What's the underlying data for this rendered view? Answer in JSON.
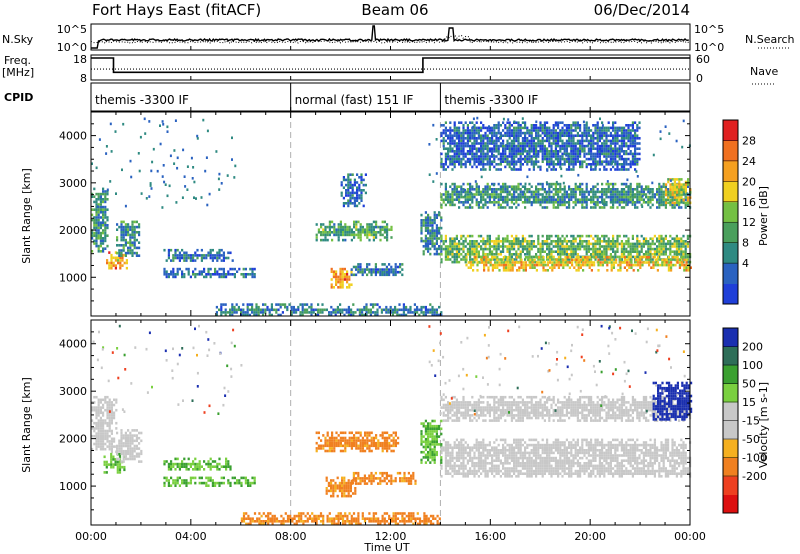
{
  "header": {
    "radar": "Fort Hays East (fitACF)",
    "beam": "Beam 06",
    "date": "06/Dec/2014"
  },
  "left_labels": {
    "nsky": "N.Sky",
    "freq_line1": "Freq.",
    "freq_line2": "[MHz]",
    "cpid": "CPID"
  },
  "right_labels": {
    "nsearch": "N.Search",
    "nave": "Nave"
  },
  "xaxis": {
    "title": "Time UT",
    "ticks": [
      "00:00",
      "04:00",
      "08:00",
      "12:00",
      "16:00",
      "20:00",
      "00:00"
    ],
    "range_hours": [
      0,
      24
    ]
  },
  "colors": {
    "power": [
      "#1f3fd8",
      "#2a62c0",
      "#2f8a82",
      "#4a9f5c",
      "#74c043",
      "#f0d020",
      "#f5a020",
      "#f07020",
      "#e02020"
    ],
    "velocity": [
      "#1a2fb0",
      "#2e6e58",
      "#3aa030",
      "#7ad040",
      "#c8c8c8",
      "#c8c8c8",
      "#f5b020",
      "#f08020",
      "#ee4020",
      "#dd1010"
    ],
    "grey": "#c8c8c8"
  },
  "chart_data": [
    {
      "id": "noise",
      "type": "line",
      "ylabel_left": "N.Sky",
      "ylabel_right": "N.Search",
      "left_ticks": [
        "10^5",
        "10^0"
      ],
      "right_ticks": [
        "10^5",
        "10^0"
      ],
      "note": "Noise level; flat near 10^0 with spikes near 11:20 and 14:30 UT"
    },
    {
      "id": "freq_nave",
      "type": "line",
      "left_ticks": [
        "18",
        "8"
      ],
      "right_ticks": [
        "60",
        "0"
      ],
      "series": [
        {
          "name": "Freq.",
          "x": [
            0,
            0.9,
            0.9,
            13.3,
            13.3,
            24
          ],
          "y": [
            18,
            18,
            10.5,
            10.5,
            18,
            18
          ]
        },
        {
          "name": "Nave",
          "x": [
            0,
            24
          ],
          "y": [
            25,
            25
          ]
        }
      ]
    },
    {
      "id": "cpid",
      "type": "table",
      "segments": [
        {
          "label": "themis -3300 IF",
          "start": 0,
          "end": 8
        },
        {
          "label": "normal (fast) 151 IF",
          "start": 8,
          "end": 14
        },
        {
          "label": "themis -3300 IF",
          "start": 14,
          "end": 24
        }
      ]
    },
    {
      "id": "power",
      "type": "heatmap",
      "ylabel": "Slant Range [km]",
      "y_ticks": [
        1000,
        2000,
        3000,
        4000
      ],
      "ylim": [
        180,
        4500
      ],
      "xlim": [
        0,
        24
      ],
      "colorbar": {
        "label": "Power [dB]",
        "ticks": [
          "28",
          "24",
          "20",
          "16",
          "12",
          "8",
          "4"
        ],
        "range": [
          0,
          30
        ]
      },
      "regions": [
        {
          "t0": 0.0,
          "t1": 0.7,
          "r0": 1550,
          "r1": 2900,
          "level": 10
        },
        {
          "t0": 0.6,
          "t1": 1.4,
          "r0": 1200,
          "r1": 1550,
          "level": 22
        },
        {
          "t0": 1.0,
          "t1": 1.9,
          "r0": 1450,
          "r1": 2200,
          "level": 9
        },
        {
          "t0": 2.9,
          "t1": 5.7,
          "r0": 1350,
          "r1": 1600,
          "level": 7
        },
        {
          "t0": 2.9,
          "t1": 6.6,
          "r0": 1000,
          "r1": 1200,
          "level": 7
        },
        {
          "t0": 9.0,
          "t1": 12.0,
          "r0": 1800,
          "r1": 2200,
          "level": 12
        },
        {
          "t0": 10.0,
          "t1": 11.0,
          "r0": 2500,
          "r1": 3200,
          "level": 6
        },
        {
          "t0": 9.6,
          "t1": 10.4,
          "r0": 800,
          "r1": 1200,
          "level": 22
        },
        {
          "t0": 10.4,
          "t1": 12.6,
          "r0": 1050,
          "r1": 1300,
          "level": 8
        },
        {
          "t0": 5.0,
          "t1": 14.0,
          "r0": 180,
          "r1": 450,
          "level": 8
        },
        {
          "t0": 13.2,
          "t1": 14.0,
          "r0": 1500,
          "r1": 2400,
          "level": 9
        },
        {
          "t0": 14.0,
          "t1": 24.0,
          "r0": 1300,
          "r1": 1900,
          "level": 14
        },
        {
          "t0": 15.0,
          "t1": 24.0,
          "r0": 1150,
          "r1": 1450,
          "level": 20
        },
        {
          "t0": 14.0,
          "t1": 24.0,
          "r0": 2500,
          "r1": 3000,
          "level": 10
        },
        {
          "t0": 14.0,
          "t1": 22.0,
          "r0": 3300,
          "r1": 4300,
          "level": 6
        },
        {
          "t0": 23.0,
          "t1": 24.0,
          "r0": 2600,
          "r1": 3100,
          "level": 18
        }
      ]
    },
    {
      "id": "velocity",
      "type": "heatmap",
      "ylabel": "Slant Range [km]",
      "y_ticks": [
        1000,
        2000,
        3000,
        4000
      ],
      "ylim": [
        180,
        4500
      ],
      "xlim": [
        0,
        24
      ],
      "colorbar": {
        "label": "Velocity [m s-1]",
        "ticks": [
          "200",
          "100",
          "50",
          "15",
          "-15",
          "-50",
          "-100",
          "-200"
        ],
        "range": [
          -250,
          250
        ]
      },
      "regions": [
        {
          "t0": 0.0,
          "t1": 1.0,
          "r0": 1700,
          "r1": 2900,
          "level": 0
        },
        {
          "t0": 0.5,
          "t1": 1.3,
          "r0": 1300,
          "r1": 1700,
          "level": 30
        },
        {
          "t0": 1.0,
          "t1": 2.0,
          "r0": 1500,
          "r1": 2200,
          "level": 0
        },
        {
          "t0": 2.9,
          "t1": 5.7,
          "r0": 1350,
          "r1": 1600,
          "level": 30
        },
        {
          "t0": 2.9,
          "t1": 6.6,
          "r0": 1000,
          "r1": 1200,
          "level": 30
        },
        {
          "t0": 9.0,
          "t1": 12.3,
          "r0": 1750,
          "r1": 2150,
          "level": -60
        },
        {
          "t0": 9.4,
          "t1": 10.6,
          "r0": 800,
          "r1": 1200,
          "level": -60
        },
        {
          "t0": 10.4,
          "t1": 13.0,
          "r0": 1050,
          "r1": 1300,
          "level": -60
        },
        {
          "t0": 6.0,
          "t1": 14.0,
          "r0": 180,
          "r1": 450,
          "level": -60
        },
        {
          "t0": 13.2,
          "t1": 14.0,
          "r0": 1500,
          "r1": 2400,
          "level": 30
        },
        {
          "t0": 14.0,
          "t1": 24.0,
          "r0": 1200,
          "r1": 2000,
          "level": 0
        },
        {
          "t0": 14.0,
          "t1": 24.0,
          "r0": 2400,
          "r1": 2900,
          "level": 0
        },
        {
          "t0": 22.5,
          "t1": 24.0,
          "r0": 2400,
          "r1": 3200,
          "level": 200
        }
      ]
    }
  ]
}
